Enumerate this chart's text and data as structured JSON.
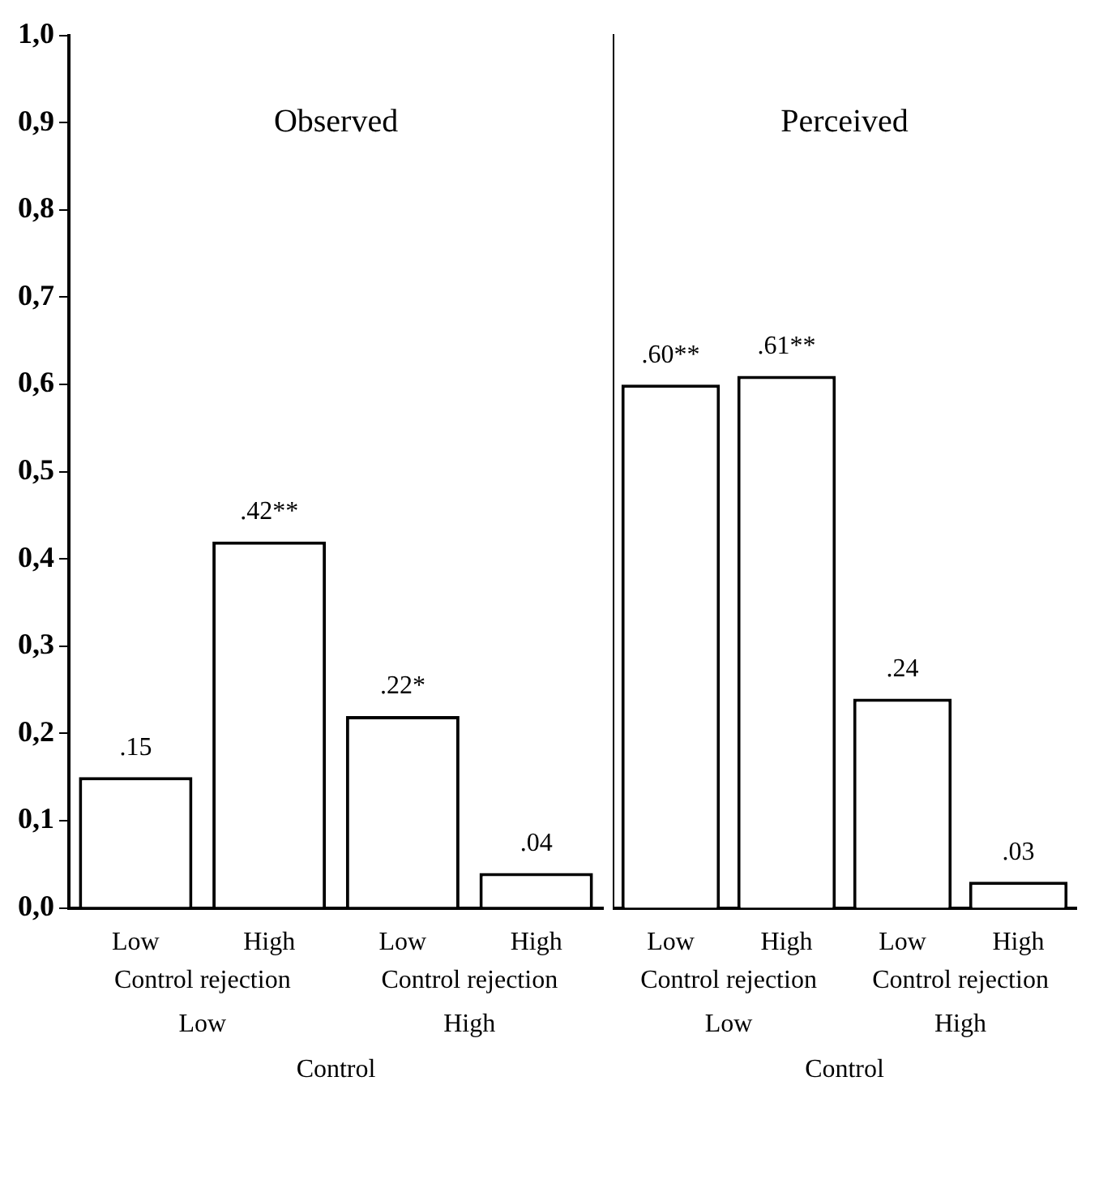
{
  "chart_data": [
    {
      "type": "bar",
      "title": "Observed",
      "categories": [
        "Low",
        "High",
        "Low",
        "High"
      ],
      "values": [
        0.15,
        0.42,
        0.22,
        0.04
      ],
      "value_labels": [
        ".15",
        ".42**",
        ".22*",
        ".04"
      ],
      "color": "#ffffff",
      "ylim": [
        0,
        1
      ],
      "yticks": [
        {
          "value": 0,
          "label": "0,0"
        },
        {
          "value": 0.1,
          "label": "0,1"
        },
        {
          "value": 0.2,
          "label": "0,2"
        },
        {
          "value": 0.3,
          "label": "0,3"
        },
        {
          "value": 0.4,
          "label": "0,4"
        },
        {
          "value": 0.5,
          "label": "0,5"
        },
        {
          "value": 0.6,
          "label": "0,6"
        },
        {
          "value": 0.7,
          "label": "0,7"
        },
        {
          "value": 0.8,
          "label": "0,8"
        },
        {
          "value": 0.9,
          "label": "0,9"
        },
        {
          "value": 1,
          "label": "1,0"
        }
      ],
      "annotations": [
        "Control rejection",
        "Control rejection",
        "Low",
        "High",
        "Control"
      ]
    },
    {
      "type": "bar",
      "title": "Perceived",
      "categories": [
        "Low",
        "High",
        "Low",
        "High"
      ],
      "values": [
        0.6,
        0.61,
        0.24,
        0.03
      ],
      "value_labels": [
        ".60**",
        ".61**",
        ".24",
        ".03"
      ],
      "color": "#ffffff",
      "ylim": [
        0,
        1
      ],
      "tick_labels": "x",
      "annotations": [
        "Control rejection",
        "Control rejection",
        "Low",
        "High",
        "Control"
      ]
    }
  ]
}
